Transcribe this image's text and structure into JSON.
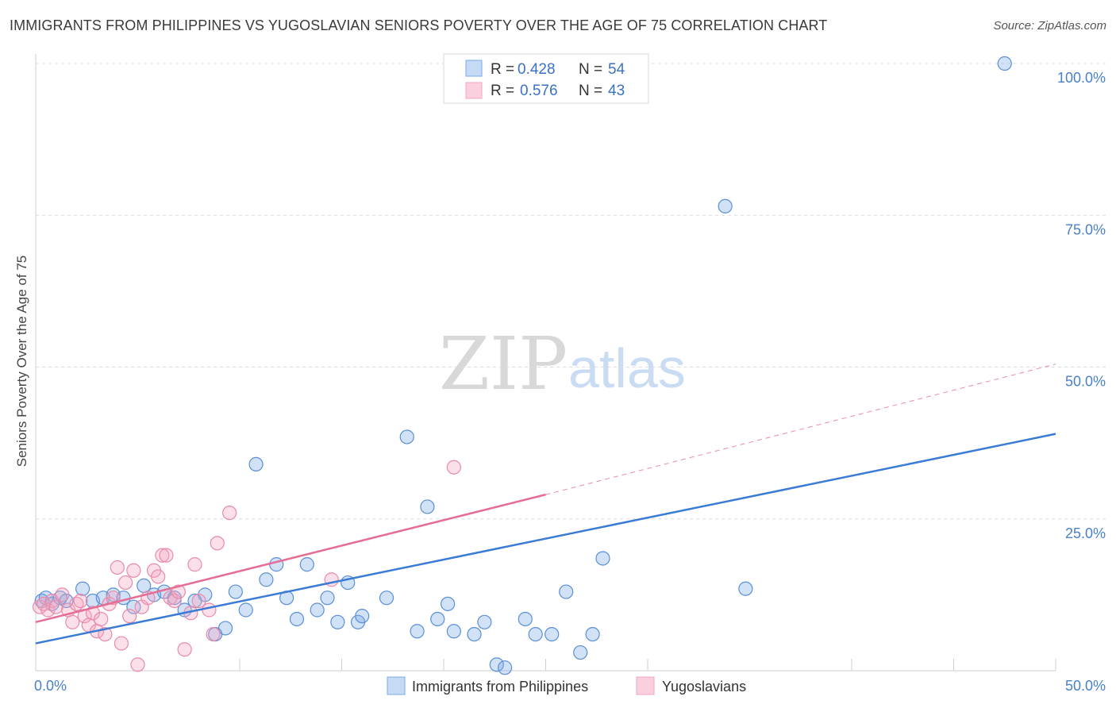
{
  "header": {
    "title": "IMMIGRANTS FROM PHILIPPINES VS YUGOSLAVIAN SENIORS POVERTY OVER THE AGE OF 75 CORRELATION CHART",
    "source": "Source: ZipAtlas.com"
  },
  "watermark": {
    "zip": "ZIP",
    "atlas": "atlas"
  },
  "legend": {
    "r_label": "R =",
    "n_label": "N =",
    "rows": [
      {
        "r": "0.428",
        "n": "54"
      },
      {
        "r": "0.576",
        "n": "43"
      }
    ]
  },
  "chart_data": {
    "type": "scatter",
    "title": "IMMIGRANTS FROM PHILIPPINES VS YUGOSLAVIAN SENIORS POVERTY OVER THE AGE OF 75 CORRELATION CHART",
    "xlabel": "",
    "ylabel": "Seniors Poverty Over the Age of 75",
    "xlim": [
      0,
      50
    ],
    "ylim": [
      0,
      100
    ],
    "x_tick_labels": [
      "0.0%",
      "50.0%"
    ],
    "y_ticks": [
      {
        "value": 25,
        "label": "25.0%"
      },
      {
        "value": 50,
        "label": "50.0%"
      },
      {
        "value": 75,
        "label": "75.0%"
      },
      {
        "value": 100,
        "label": "100.0%"
      }
    ],
    "grid": true,
    "legend_position": "top-center",
    "series": [
      {
        "name": "Immigrants from Philippines",
        "color": "#7aaae6",
        "stroke": "#5b8fd6",
        "R": 0.428,
        "N": 54,
        "trend": {
          "x0": 0,
          "y0": 4.5,
          "x1": 50,
          "y1": 39.0,
          "dashed_to": 50
        },
        "trend_color": "#3a7bd5",
        "points": [
          [
            0.3,
            11.5
          ],
          [
            0.5,
            12.0
          ],
          [
            0.8,
            11.0
          ],
          [
            1.2,
            12.0
          ],
          [
            1.5,
            11.5
          ],
          [
            2.3,
            13.5
          ],
          [
            2.8,
            11.5
          ],
          [
            3.3,
            12.0
          ],
          [
            3.8,
            12.5
          ],
          [
            4.3,
            12.0
          ],
          [
            4.8,
            10.5
          ],
          [
            5.3,
            14.0
          ],
          [
            5.8,
            12.5
          ],
          [
            6.3,
            13.0
          ],
          [
            6.8,
            12.0
          ],
          [
            7.3,
            10.0
          ],
          [
            7.8,
            11.5
          ],
          [
            8.3,
            12.5
          ],
          [
            8.8,
            6.0
          ],
          [
            9.3,
            7.0
          ],
          [
            9.8,
            13.0
          ],
          [
            10.3,
            10.0
          ],
          [
            10.8,
            34.0
          ],
          [
            11.3,
            15.0
          ],
          [
            11.8,
            17.5
          ],
          [
            12.3,
            12.0
          ],
          [
            12.8,
            8.5
          ],
          [
            13.3,
            17.5
          ],
          [
            13.8,
            10.0
          ],
          [
            14.3,
            12.0
          ],
          [
            14.8,
            8.0
          ],
          [
            15.3,
            14.5
          ],
          [
            15.8,
            8.0
          ],
          [
            16.0,
            9.0
          ],
          [
            17.2,
            12.0
          ],
          [
            18.2,
            38.5
          ],
          [
            18.7,
            6.5
          ],
          [
            19.2,
            27.0
          ],
          [
            19.7,
            8.5
          ],
          [
            20.2,
            11.0
          ],
          [
            20.5,
            6.5
          ],
          [
            21.5,
            6.0
          ],
          [
            22.0,
            8.0
          ],
          [
            22.6,
            1.0
          ],
          [
            23.0,
            0.5
          ],
          [
            24.0,
            8.5
          ],
          [
            24.5,
            6.0
          ],
          [
            25.3,
            6.0
          ],
          [
            26.0,
            13.0
          ],
          [
            26.7,
            3.0
          ],
          [
            27.3,
            6.0
          ],
          [
            27.8,
            18.5
          ],
          [
            33.8,
            76.5
          ],
          [
            34.8,
            13.5
          ],
          [
            47.5,
            100.0
          ]
        ]
      },
      {
        "name": "Yugoslavians",
        "color": "#f4a6bf",
        "stroke": "#e88aab",
        "R": 0.576,
        "N": 43,
        "trend": {
          "x0": 0,
          "y0": 8.0,
          "x1": 25,
          "y1": 29.0,
          "dashed_to": 50,
          "y_dashed_end": 50.5
        },
        "trend_color": "#e56e95",
        "points": [
          [
            0.2,
            10.5
          ],
          [
            0.4,
            11.0
          ],
          [
            0.6,
            10.0
          ],
          [
            0.8,
            11.5
          ],
          [
            1.0,
            10.5
          ],
          [
            1.3,
            12.5
          ],
          [
            1.6,
            10.0
          ],
          [
            1.8,
            8.0
          ],
          [
            2.0,
            11.0
          ],
          [
            2.2,
            11.5
          ],
          [
            2.4,
            9.0
          ],
          [
            2.6,
            7.5
          ],
          [
            2.8,
            9.5
          ],
          [
            3.0,
            6.5
          ],
          [
            3.2,
            8.5
          ],
          [
            3.4,
            6.0
          ],
          [
            3.6,
            11.0
          ],
          [
            3.8,
            12.0
          ],
          [
            4.0,
            17.0
          ],
          [
            4.2,
            4.5
          ],
          [
            4.4,
            14.5
          ],
          [
            4.6,
            9.0
          ],
          [
            4.8,
            16.5
          ],
          [
            5.0,
            1.0
          ],
          [
            5.2,
            10.5
          ],
          [
            5.5,
            12.0
          ],
          [
            5.8,
            16.5
          ],
          [
            6.0,
            15.5
          ],
          [
            6.2,
            19.0
          ],
          [
            6.4,
            19.0
          ],
          [
            6.6,
            12.0
          ],
          [
            6.8,
            11.5
          ],
          [
            7.0,
            13.0
          ],
          [
            7.3,
            3.5
          ],
          [
            7.6,
            9.5
          ],
          [
            7.8,
            17.5
          ],
          [
            8.0,
            11.5
          ],
          [
            8.5,
            10.0
          ],
          [
            8.7,
            6.0
          ],
          [
            8.9,
            21.0
          ],
          [
            9.5,
            26.0
          ],
          [
            14.5,
            15.0
          ],
          [
            20.5,
            33.5
          ]
        ]
      }
    ]
  },
  "bottom_legend": {
    "items": [
      {
        "label": "Immigrants from Philippines"
      },
      {
        "label": "Yugoslavians"
      }
    ]
  }
}
